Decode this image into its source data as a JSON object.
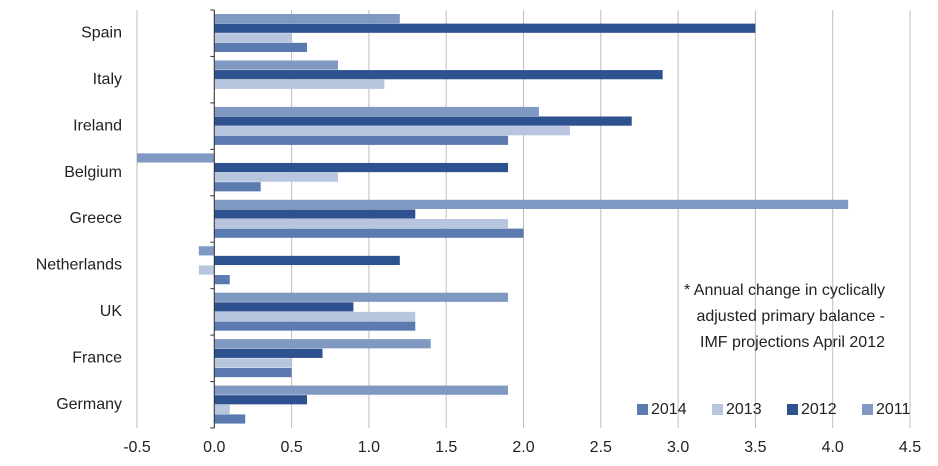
{
  "chart_data": {
    "type": "bar",
    "orientation": "horizontal",
    "categories": [
      "Spain",
      "Italy",
      "Ireland",
      "Belgium",
      "Greece",
      "Netherlands",
      "UK",
      "France",
      "Germany"
    ],
    "series": [
      {
        "name": "2014",
        "color": "#5b7bb0",
        "values": [
          0.6,
          0,
          1.9,
          0.3,
          2.0,
          0.1,
          1.3,
          0.5,
          0.2
        ]
      },
      {
        "name": "2013",
        "color": "#b7c5de",
        "values": [
          0.5,
          1.1,
          2.3,
          0.8,
          1.9,
          -0.1,
          1.3,
          0.5,
          0.1
        ]
      },
      {
        "name": "2012",
        "color": "#2e5190",
        "values": [
          3.5,
          2.9,
          2.7,
          1.9,
          1.3,
          1.2,
          0.9,
          0.7,
          0.6
        ]
      },
      {
        "name": "2011",
        "color": "#8099c2",
        "values": [
          1.2,
          0.8,
          2.1,
          -0.5,
          4.1,
          -0.1,
          1.9,
          1.4,
          1.9
        ]
      }
    ],
    "xlim": [
      -0.5,
      4.5
    ],
    "xticks": [
      -0.5,
      {
        "value": 0,
        "label": "0.0"
      },
      0.5,
      {
        "value": 1,
        "label": "1.0"
      },
      1.5,
      {
        "value": 2,
        "label": "2.0"
      },
      2.5,
      {
        "value": 3,
        "label": "3.0"
      },
      3.5,
      {
        "value": 4,
        "label": "4.0"
      },
      4.5
    ],
    "grid": true,
    "legend": "bottom-right",
    "annotation": [
      "* Annual change in cyclically",
      "adjusted primary balance -",
      "IMF projections April 2012"
    ]
  }
}
